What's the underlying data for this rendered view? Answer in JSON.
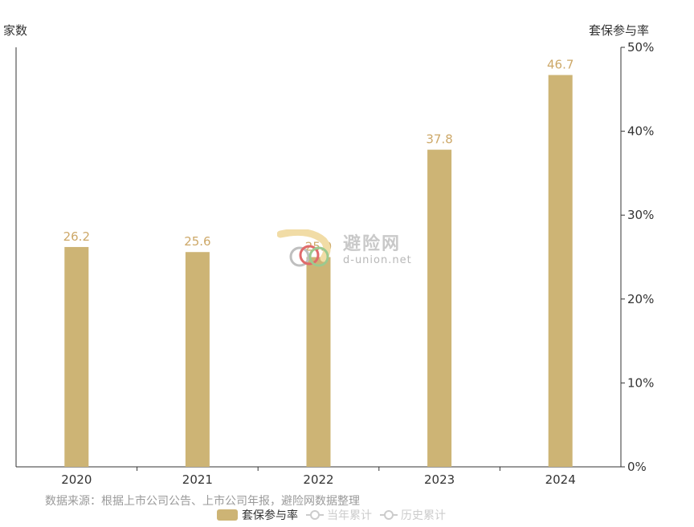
{
  "chart_data": {
    "type": "bar",
    "title": "",
    "categories": [
      "2020",
      "2021",
      "2022",
      "2023",
      "2024"
    ],
    "series": [
      {
        "name": "套保参与率",
        "values": [
          26.2,
          25.6,
          25.0,
          37.8,
          46.7
        ],
        "color": "#cdb475"
      }
    ],
    "left_axis_label": "家数",
    "right_axis_label": "套保参与率",
    "right_axis": {
      "ylim": [
        0,
        50
      ],
      "ticks": [
        "0%",
        "10%",
        "20%",
        "30%",
        "40%",
        "50%"
      ]
    },
    "grid": false,
    "data_label_color": "#cda868",
    "legend_position": "bottom-center"
  },
  "legend": {
    "items": [
      {
        "label": "套保参与率",
        "active": true
      },
      {
        "label": "当年累计",
        "active": false
      },
      {
        "label": "历史累计",
        "active": false
      }
    ]
  },
  "source_note": "数据来源：根据上市公司公告、上市公司年报，避险网数据整理",
  "watermark": {
    "brand": "避险网",
    "url": "d-union.net"
  }
}
